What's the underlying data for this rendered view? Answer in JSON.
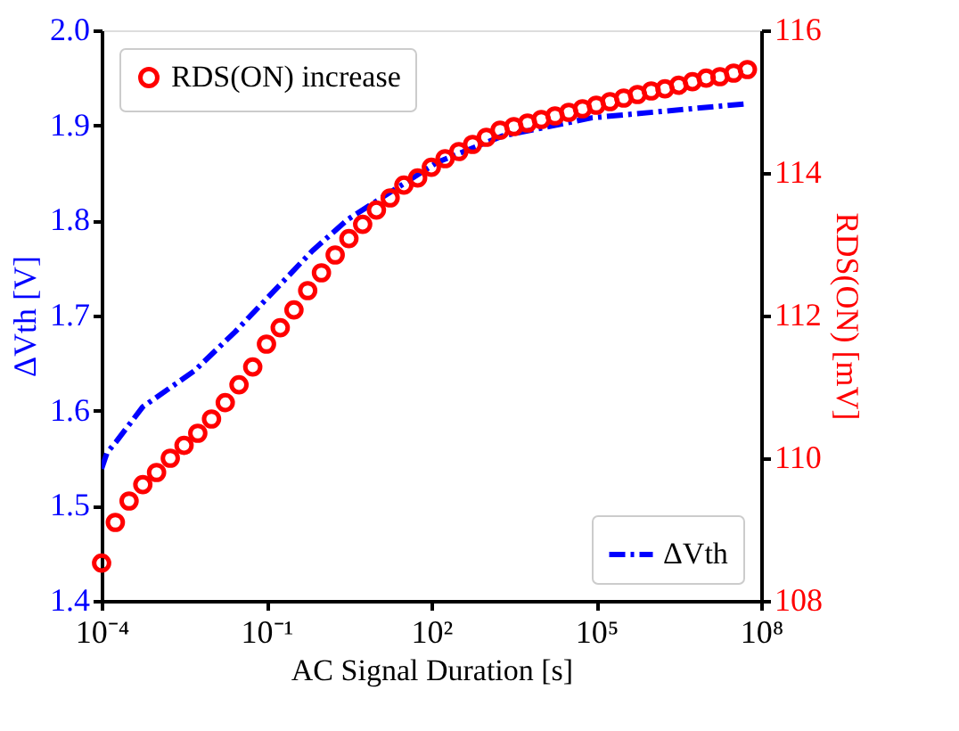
{
  "chart_data": {
    "type": "line",
    "xlabel": "AC Signal Duration [s]",
    "ylabel": "ΔVth [V]",
    "y2label": "RDS(ON) [mV]",
    "log": "x",
    "xlim": [
      0.0001,
      100000000.0
    ],
    "xticks": [
      {
        "value": 0.0001,
        "label": "10⁻⁴"
      },
      {
        "value": 0.1,
        "label": "10⁻¹"
      },
      {
        "value": 100.0,
        "label": "10²"
      },
      {
        "value": 100000.0,
        "label": "10⁵"
      },
      {
        "value": 100000000.0,
        "label": "10⁸"
      }
    ],
    "ylim": [
      1.4,
      2.0
    ],
    "yticks": [
      {
        "value": 1.4,
        "label": "1.4"
      },
      {
        "value": 1.5,
        "label": "1.5"
      },
      {
        "value": 1.6,
        "label": "1.6"
      },
      {
        "value": 1.7,
        "label": "1.7"
      },
      {
        "value": 1.8,
        "label": "1.8"
      },
      {
        "value": 1.9,
        "label": "1.9"
      },
      {
        "value": 2.0,
        "label": "2.0"
      }
    ],
    "y2lim": [
      108,
      116
    ],
    "y2ticks": [
      108,
      110,
      112,
      114,
      116
    ],
    "legend": "top left",
    "series": [
      {
        "name": "ΔVth",
        "type": "line",
        "color": "#0000ff",
        "line_style": "dashdot",
        "x": [
          0.0001,
          0.000126,
          0.000182,
          0.00056,
          0.0049,
          0.027,
          0.68,
          3.0,
          126,
          2000,
          83000,
          59000000.0
        ],
        "values": [
          1.539,
          1.556,
          1.567,
          1.604,
          1.642,
          1.683,
          1.768,
          1.801,
          1.861,
          1.889,
          1.908,
          1.923
        ]
      },
      {
        "name": "RDS(ON) increase",
        "type": "scatter",
        "axis": "y2",
        "color": "#ff0000",
        "marker": "circle",
        "x": [
          0.0001,
          0.0001778,
          0.0003162,
          0.0005623,
          0.001,
          0.001778,
          0.003162,
          0.005623,
          0.01,
          0.01778,
          0.03162,
          0.05623,
          0.1,
          0.1778,
          0.3162,
          0.5623,
          1,
          1.778,
          3.162,
          5.623,
          10,
          17.78,
          31.62,
          56.23,
          100,
          177.8,
          316.2,
          562.3,
          1000,
          1778,
          3162,
          5623,
          10000,
          17780,
          31620,
          56230,
          100000,
          177800,
          316200,
          562300,
          1000000,
          1778000,
          3162000,
          5623000,
          10000000,
          17780000,
          31620000,
          56230000
        ],
        "values": [
          108.53,
          109.1,
          109.4,
          109.63,
          109.8,
          110.0,
          110.18,
          110.35,
          110.55,
          110.78,
          111.03,
          111.28,
          111.6,
          111.83,
          112.08,
          112.35,
          112.6,
          112.85,
          113.08,
          113.28,
          113.48,
          113.65,
          113.83,
          113.93,
          114.08,
          114.2,
          114.3,
          114.4,
          114.5,
          114.6,
          114.65,
          114.7,
          114.75,
          114.8,
          114.85,
          114.9,
          114.95,
          115.0,
          115.05,
          115.1,
          115.15,
          115.18,
          115.23,
          115.28,
          115.33,
          115.35,
          115.4,
          115.45
        ]
      }
    ]
  }
}
